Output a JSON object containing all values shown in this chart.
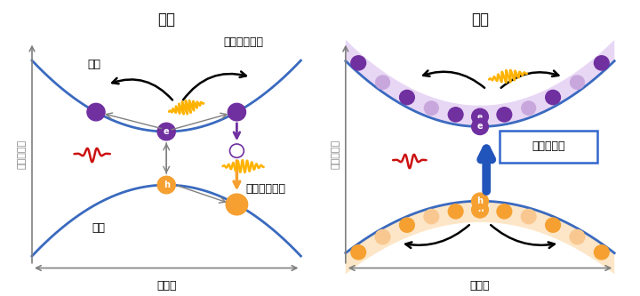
{
  "title_left": "従来",
  "title_right": "今回",
  "ylabel": "エネルギー",
  "xlabel": "運動量",
  "label_electron": "電子",
  "label_hole": "正孔",
  "label_intraband": "バンド内電流",
  "label_interband": "バンド間分極",
  "label_nonlinear": "非線形励起",
  "band_color": "#3a6abf",
  "electron_color": "#7030a0",
  "electron_light_color": "#c8a8dc",
  "hole_color": "#f5a030",
  "hole_light_color": "#f8c890",
  "bg_color": "#ffffff"
}
